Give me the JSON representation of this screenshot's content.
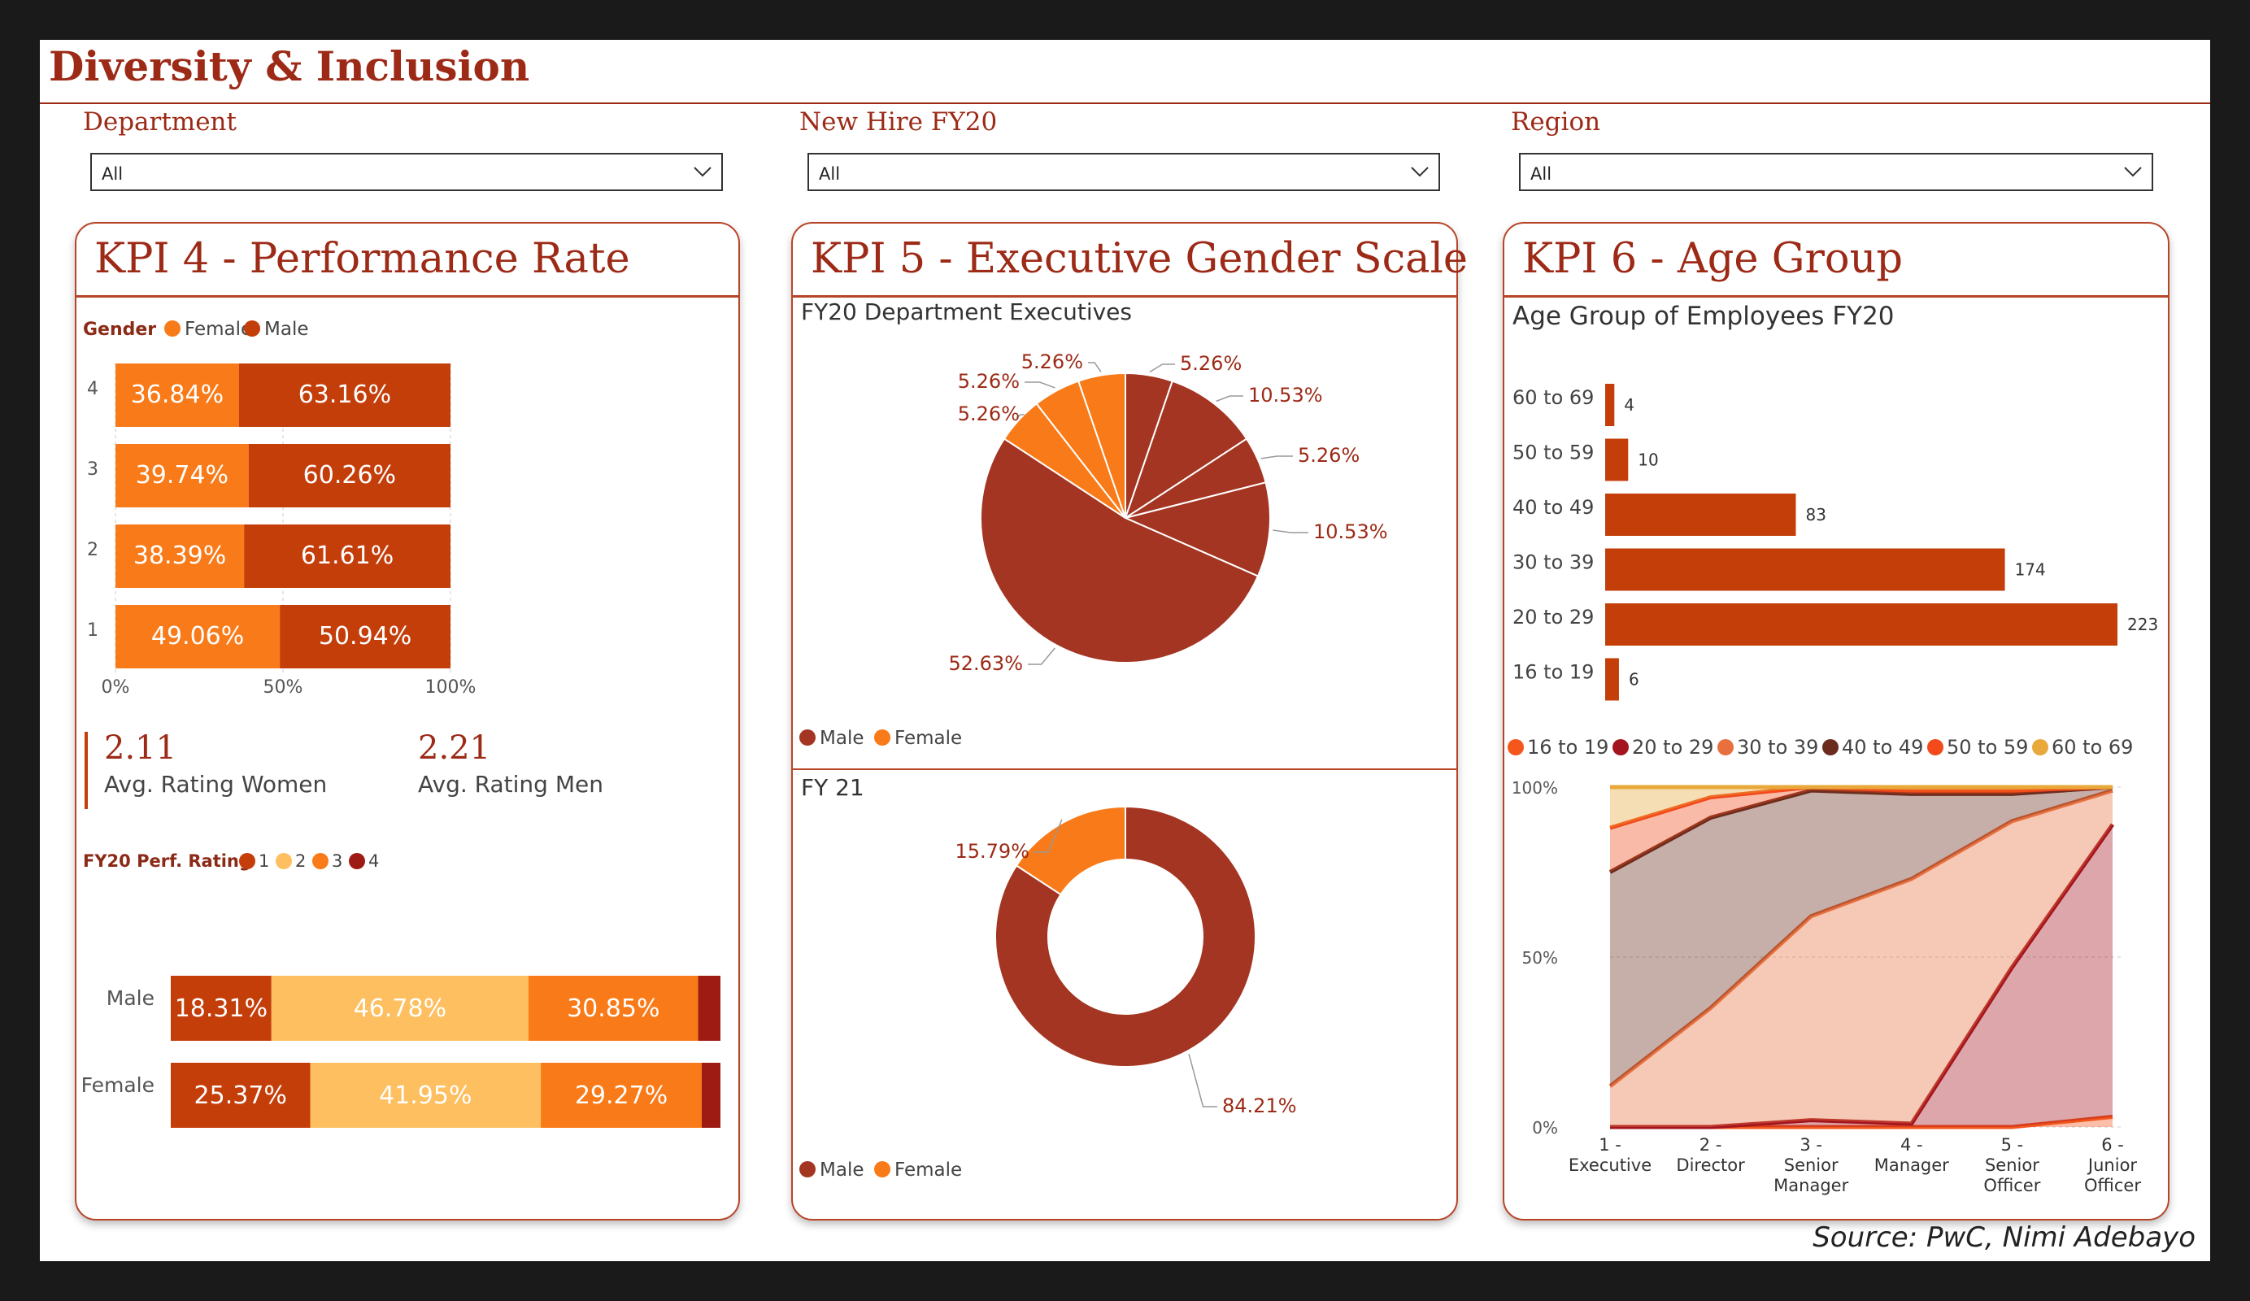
{
  "header": {
    "title": "Diversity & Inclusion"
  },
  "filters": [
    {
      "label": "Department",
      "value": "All"
    },
    {
      "label": "New Hire FY20",
      "value": "All"
    },
    {
      "label": "Region",
      "value": "All"
    }
  ],
  "kpi4": {
    "title": "KPI 4 - Performance Rate",
    "avg_women_value": "2.11",
    "avg_women_label": "Avg. Rating Women",
    "avg_men_value": "2.21",
    "avg_men_label": "Avg. Rating Men"
  },
  "kpi5": {
    "title": "KPI 5 - Executive Gender Scale",
    "pie_title": "FY20 Department Executives",
    "donut_title": "FY 21"
  },
  "kpi6": {
    "title": "KPI 6 - Age Group",
    "bar_title": "Age Group of Employees FY20"
  },
  "source": "Source: PwC, Nimi Adebayo",
  "colors": {
    "male": "#c43e0a",
    "female": "#f97a18",
    "pie_male": "#a33522",
    "brand": "#9c2a16"
  },
  "chart_data": [
    {
      "id": "gender_by_rating",
      "type": "bar",
      "stacked": "100%",
      "legend_title": "Gender",
      "categories": [
        "4",
        "3",
        "2",
        "1"
      ],
      "series": [
        {
          "name": "Female",
          "values": [
            36.84,
            39.74,
            38.39,
            49.06
          ],
          "color": "#f97a18"
        },
        {
          "name": "Male",
          "values": [
            63.16,
            60.26,
            61.61,
            50.94
          ],
          "color": "#c43e0a"
        }
      ],
      "xticks": [
        "0%",
        "50%",
        "100%"
      ]
    },
    {
      "id": "perf_rating_by_gender",
      "type": "bar",
      "stacked": "100%",
      "legend_title": "FY20 Perf. Rating",
      "categories": [
        "Male",
        "Female"
      ],
      "series": [
        {
          "name": "1",
          "values": [
            18.31,
            25.37
          ],
          "color": "#c43e0a"
        },
        {
          "name": "2",
          "values": [
            46.78,
            41.95
          ],
          "color": "#fdbf5f"
        },
        {
          "name": "3",
          "values": [
            30.85,
            29.27
          ],
          "color": "#f97a18"
        },
        {
          "name": "4",
          "values": [
            4.06,
            3.41
          ],
          "color": "#9e1b14"
        }
      ]
    },
    {
      "id": "fy20_executives",
      "type": "pie",
      "legend": [
        "Male",
        "Female"
      ],
      "slices": [
        {
          "group": "Male",
          "value": 5.26,
          "label": "5.26%"
        },
        {
          "group": "Male",
          "value": 10.53,
          "label": "10.53%"
        },
        {
          "group": "Male",
          "value": 5.26,
          "label": "5.26%"
        },
        {
          "group": "Male",
          "value": 10.53,
          "label": "10.53%"
        },
        {
          "group": "Male",
          "value": 52.63,
          "label": "52.63%"
        },
        {
          "group": "Female",
          "value": 5.26,
          "label": "5.26%"
        },
        {
          "group": "Female",
          "value": 5.26,
          "label": "5.26%"
        },
        {
          "group": "Female",
          "value": 5.26,
          "label": "5.26%"
        }
      ]
    },
    {
      "id": "fy21_executives",
      "type": "pie",
      "donut": true,
      "legend": [
        "Male",
        "Female"
      ],
      "slices": [
        {
          "group": "Male",
          "value": 84.21,
          "label": "84.21%"
        },
        {
          "group": "Female",
          "value": 15.79,
          "label": "15.79%"
        }
      ]
    },
    {
      "id": "age_group_fy20",
      "type": "bar",
      "orientation": "horizontal",
      "categories": [
        "60 to 69",
        "50 to 59",
        "40 to 49",
        "30 to 39",
        "20 to 29",
        "16 to 19"
      ],
      "values": [
        4,
        10,
        83,
        174,
        223,
        6
      ]
    },
    {
      "id": "age_by_level",
      "type": "area",
      "stacked": "100%",
      "x": [
        "1 - Executive",
        "2 - Director",
        "3 - Senior Manager",
        "4 - Manager",
        "5 - Senior Officer",
        "6 - Junior Officer"
      ],
      "yticks": [
        "0%",
        "50%",
        "100%"
      ],
      "series": [
        {
          "name": "16 to 19",
          "color": "#f4561c",
          "values": [
            0,
            0,
            0,
            0,
            0,
            3
          ]
        },
        {
          "name": "20 to 29",
          "color": "#a3141f",
          "values": [
            0,
            0,
            2,
            1,
            47,
            86
          ]
        },
        {
          "name": "30 to 39",
          "color": "#e8703f",
          "values": [
            12,
            35,
            60,
            72,
            43,
            10
          ]
        },
        {
          "name": "40 to 49",
          "color": "#6b2c1e",
          "values": [
            63,
            56,
            37,
            25,
            8,
            1
          ]
        },
        {
          "name": "50 to 59",
          "color": "#f24a1a",
          "values": [
            13,
            6,
            1,
            1,
            1,
            0
          ]
        },
        {
          "name": "60 to 69",
          "color": "#e8a83a",
          "values": [
            12,
            3,
            0,
            1,
            1,
            0
          ]
        }
      ]
    }
  ]
}
